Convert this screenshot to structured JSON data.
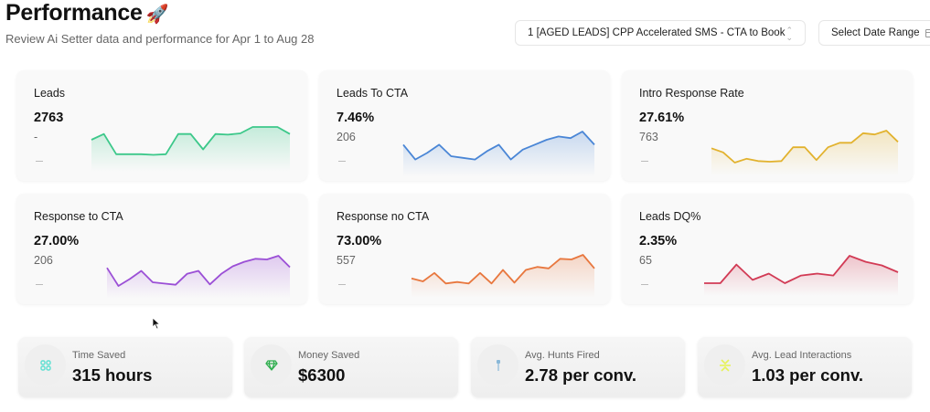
{
  "header": {
    "title": "Performance",
    "title_emoji": "🚀",
    "subtitle": "Review Ai Setter data and performance for Apr 1 to Aug 28"
  },
  "controls": {
    "campaign_select": "1 [AGED LEADS] CPP Accelerated SMS - CTA to Book",
    "campaign_chevron": "⌃⌄",
    "date_range_label": "Select Date Range"
  },
  "metrics": [
    {
      "label": "Leads",
      "value": "2763",
      "sub": "-",
      "trend": "—",
      "color": "#3cc88a",
      "spark": [
        60,
        78,
        15,
        15,
        15,
        13,
        15,
        78,
        78,
        30,
        78,
        76,
        80,
        100,
        100,
        100,
        78
      ]
    },
    {
      "label": "Leads To CTA",
      "value": "7.46%",
      "sub": "206",
      "trend": "—",
      "color": "#4a86d6",
      "spark": [
        60,
        15,
        35,
        60,
        25,
        20,
        15,
        40,
        60,
        15,
        45,
        60,
        75,
        85,
        80,
        100,
        60
      ]
    },
    {
      "label": "Intro Response Rate",
      "value": "27.61%",
      "sub": "763",
      "trend": "—",
      "color": "#e2b22e",
      "spark": [
        45,
        32,
        0,
        12,
        5,
        3,
        5,
        48,
        48,
        8,
        48,
        62,
        62,
        92,
        88,
        100,
        65
      ]
    },
    {
      "label": "Response to CTA",
      "value": "27.00%",
      "sub": "206",
      "trend": "—",
      "color": "#9b4fd6",
      "spark": [
        60,
        0,
        23,
        50,
        12,
        8,
        4,
        40,
        50,
        5,
        40,
        65,
        80,
        90,
        88,
        100,
        62
      ]
    },
    {
      "label": "Response no CTA",
      "value": "73.00%",
      "sub": "557",
      "trend": "—",
      "color": "#e8773e",
      "spark": [
        22,
        12,
        40,
        5,
        10,
        5,
        40,
        5,
        50,
        8,
        50,
        60,
        55,
        87,
        85,
        100,
        55
      ]
    },
    {
      "label": "Leads DQ%",
      "value": "2.35%",
      "sub": "65",
      "trend": "—",
      "color": "#d23b55",
      "spark": [
        0,
        0,
        68,
        12,
        35,
        0,
        28,
        35,
        28,
        100,
        78,
        65,
        40
      ]
    }
  ],
  "stats": [
    {
      "label": "Time Saved",
      "value": "315 hours",
      "icon": "command-icon",
      "icon_color": "#5fe0d2"
    },
    {
      "label": "Money Saved",
      "value": "$6300",
      "icon": "gem-icon",
      "icon_color": "#2fae4e"
    },
    {
      "label": "Avg. Hunts Fired",
      "value": "2.78 per conv.",
      "icon": "pin-icon",
      "icon_color": "#8ab8d8"
    },
    {
      "label": "Avg. Lead Interactions",
      "value": "1.03 per conv.",
      "icon": "collapse-icon",
      "icon_color": "#e6f25a"
    }
  ]
}
